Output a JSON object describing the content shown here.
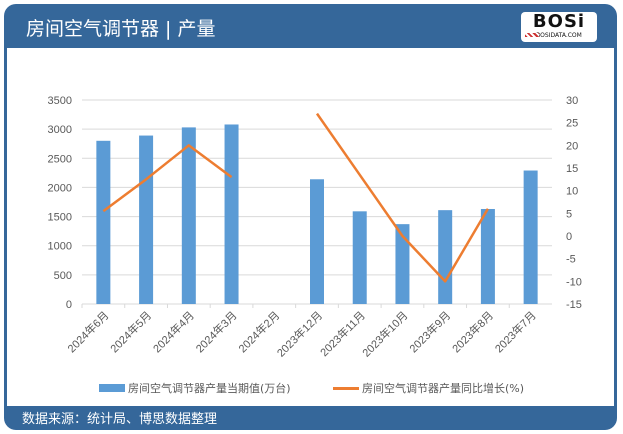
{
  "header": {
    "title": "房间空气调节器 | 产量",
    "logo_text": "BOSi",
    "logo_sub": "BOSIDATA.COM"
  },
  "footer": {
    "source": "数据来源：统计局、博思数据整理"
  },
  "legend": {
    "bar": "房间空气调节器产量当期值(万台)",
    "line": "房间空气调节器产量同比增长(%)"
  },
  "colors": {
    "bar": "#5b9bd5",
    "line": "#ed7d31",
    "frame": "#35679a"
  },
  "chart_data": {
    "type": "bar+line",
    "categories": [
      "2024年6月",
      "2024年5月",
      "2024年4月",
      "2024年3月",
      "2024年2月",
      "2023年12月",
      "2023年11月",
      "2023年10月",
      "2023年9月",
      "2023年8月",
      "2023年7月"
    ],
    "series": [
      {
        "name": "房间空气调节器产量当期值(万台)",
        "type": "bar",
        "axis": "left",
        "values": [
          2800,
          2890,
          3030,
          3080,
          null,
          2140,
          1590,
          1370,
          1610,
          1630,
          2290
        ]
      },
      {
        "name": "房间空气调节器产量同比增长(%)",
        "type": "line",
        "axis": "right",
        "values": [
          5.5,
          12.5,
          20,
          13,
          null,
          27,
          13.5,
          0,
          -10,
          6,
          null
        ]
      }
    ],
    "y_left": {
      "min": 0,
      "max": 3500,
      "ticks": [
        "0",
        "500",
        "1000",
        "1500",
        "2000",
        "2500",
        "3000",
        "3500"
      ]
    },
    "y_right": {
      "min": -15,
      "max": 30,
      "ticks": [
        "-15",
        "-10",
        "-5",
        "0",
        "5",
        "10",
        "15",
        "20",
        "25",
        "30"
      ]
    },
    "grid": true,
    "legend_position": "bottom"
  }
}
